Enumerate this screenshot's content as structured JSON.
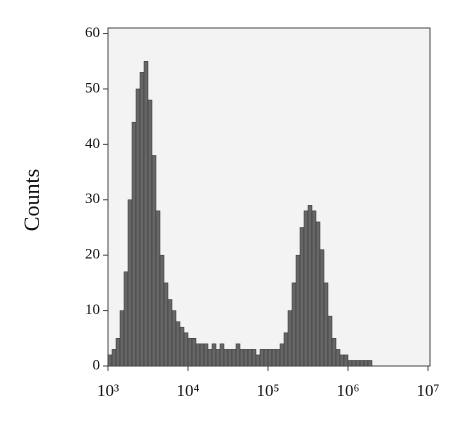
{
  "chart_data": {
    "type": "histogram",
    "y_label": "Counts",
    "xscale": "log",
    "color": "#666666",
    "bins": [
      1000,
      1122,
      1259,
      1413,
      1585,
      1778,
      1995,
      2239,
      2512,
      2818,
      3162,
      3548,
      3981,
      4467,
      5012,
      5623,
      6310,
      7079,
      7943,
      8913,
      10000,
      11220,
      12590,
      14130,
      15850,
      17780,
      19950,
      22390,
      25120,
      28180,
      31620,
      35480,
      39810,
      44670,
      50120,
      56230,
      63100,
      70790,
      79430,
      89130,
      100000,
      112200,
      125900,
      141300,
      158500,
      177800,
      199500,
      223900,
      251200,
      281800,
      316200,
      354800,
      398100,
      446700,
      501200,
      562300,
      631000,
      707900,
      794300,
      891300,
      1000000,
      1122000,
      1259000,
      1413000,
      1585000,
      1778000,
      1995000,
      2239000,
      2512000,
      2818000,
      3162000,
      3548000,
      3981000,
      4467000,
      5012000,
      5623000,
      6310000,
      7079000,
      7943000,
      8913000,
      10000000
    ],
    "values": [
      2,
      3,
      5,
      10,
      17,
      30,
      44,
      50,
      53,
      55,
      48,
      38,
      28,
      20,
      15,
      12,
      10,
      8,
      7,
      6,
      5,
      5,
      4,
      4,
      4,
      3,
      4,
      3,
      4,
      3,
      3,
      3,
      4,
      3,
      3,
      3,
      3,
      2,
      3,
      3,
      3,
      3,
      3,
      4,
      6,
      10,
      15,
      20,
      25,
      28,
      29,
      28,
      26,
      21,
      15,
      9,
      5,
      3,
      2,
      2,
      1,
      1,
      1,
      1,
      1,
      1,
      0,
      0,
      0,
      0,
      0,
      0,
      0,
      0,
      0,
      0,
      0,
      0,
      0,
      0
    ],
    "xlim": [
      1000,
      10000000
    ],
    "ylim": [
      0,
      61
    ],
    "xticks": [
      {
        "value": 1000,
        "label": "10³"
      },
      {
        "value": 10000,
        "label": "10⁴"
      },
      {
        "value": 100000,
        "label": "10⁵"
      },
      {
        "value": 1000000,
        "label": "10⁶"
      },
      {
        "value": 10000000,
        "label": "10⁷"
      }
    ],
    "yticks": [
      0,
      10,
      20,
      30,
      40,
      50,
      60
    ]
  }
}
